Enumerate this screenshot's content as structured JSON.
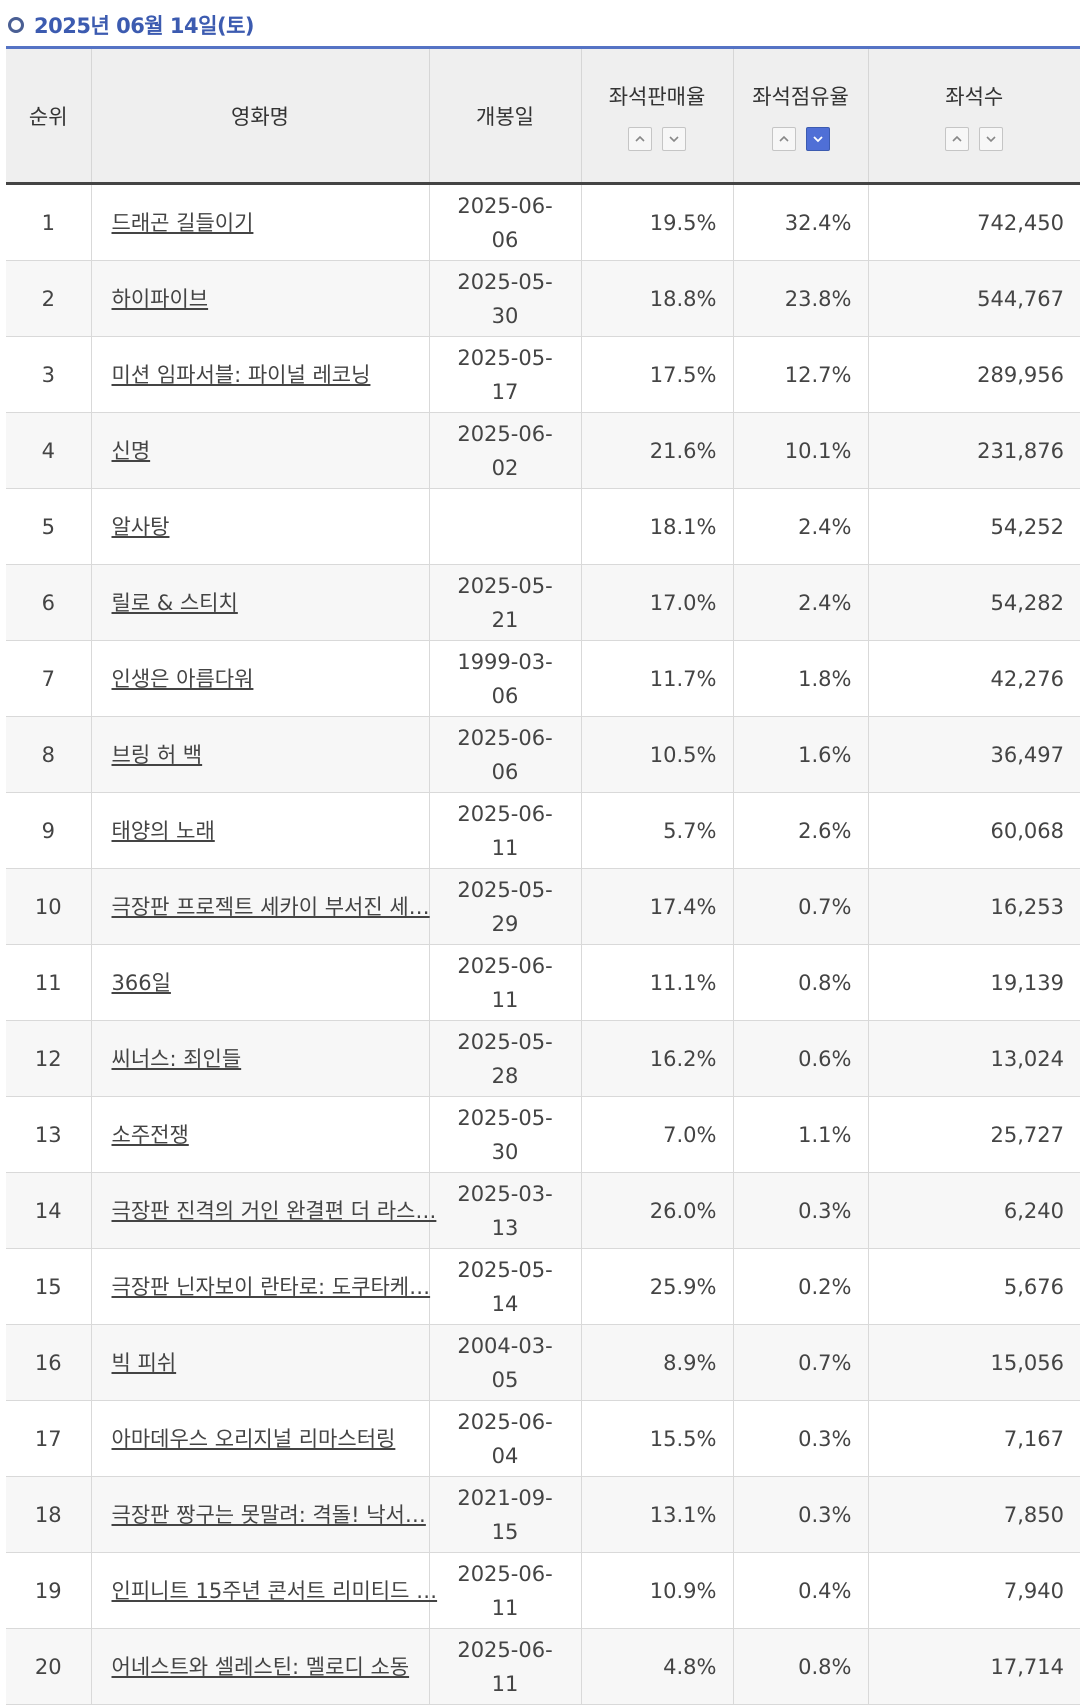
{
  "header_date": "2025년 06월 14일(토)",
  "columns": {
    "rank": "순위",
    "title": "영화명",
    "open_date": "개봉일",
    "sales_rate": "좌석판매율",
    "seat_share": "좌석점유율",
    "seats": "좌석수"
  },
  "sort_state": {
    "active_column": "seat_share",
    "active_direction": "down"
  },
  "rows": [
    {
      "rank": "1",
      "title": "드래곤 길들이기",
      "open_date": "2025-06-06",
      "sales_rate": "19.5%",
      "seat_share": "32.4%",
      "seats": "742,450"
    },
    {
      "rank": "2",
      "title": "하이파이브",
      "open_date": "2025-05-30",
      "sales_rate": "18.8%",
      "seat_share": "23.8%",
      "seats": "544,767"
    },
    {
      "rank": "3",
      "title": "미션 임파서블: 파이널 레코닝",
      "open_date": "2025-05-17",
      "sales_rate": "17.5%",
      "seat_share": "12.7%",
      "seats": "289,956"
    },
    {
      "rank": "4",
      "title": "신명",
      "open_date": "2025-06-02",
      "sales_rate": "21.6%",
      "seat_share": "10.1%",
      "seats": "231,876"
    },
    {
      "rank": "5",
      "title": "알사탕",
      "open_date": "",
      "sales_rate": "18.1%",
      "seat_share": "2.4%",
      "seats": "54,252"
    },
    {
      "rank": "6",
      "title": "릴로 & 스티치",
      "open_date": "2025-05-21",
      "sales_rate": "17.0%",
      "seat_share": "2.4%",
      "seats": "54,282"
    },
    {
      "rank": "7",
      "title": "인생은 아름다워",
      "open_date": "1999-03-06",
      "sales_rate": "11.7%",
      "seat_share": "1.8%",
      "seats": "42,276"
    },
    {
      "rank": "8",
      "title": "브링 허 백",
      "open_date": "2025-06-06",
      "sales_rate": "10.5%",
      "seat_share": "1.6%",
      "seats": "36,497"
    },
    {
      "rank": "9",
      "title": "태양의 노래",
      "open_date": "2025-06-11",
      "sales_rate": "5.7%",
      "seat_share": "2.6%",
      "seats": "60,068"
    },
    {
      "rank": "10",
      "title": "극장판 프로젝트 세카이 부서진 세…",
      "open_date": "2025-05-29",
      "sales_rate": "17.4%",
      "seat_share": "0.7%",
      "seats": "16,253"
    },
    {
      "rank": "11",
      "title": "366일",
      "open_date": "2025-06-11",
      "sales_rate": "11.1%",
      "seat_share": "0.8%",
      "seats": "19,139"
    },
    {
      "rank": "12",
      "title": "씨너스: 죄인들",
      "open_date": "2025-05-28",
      "sales_rate": "16.2%",
      "seat_share": "0.6%",
      "seats": "13,024"
    },
    {
      "rank": "13",
      "title": "소주전쟁",
      "open_date": "2025-05-30",
      "sales_rate": "7.0%",
      "seat_share": "1.1%",
      "seats": "25,727"
    },
    {
      "rank": "14",
      "title": "극장판 진격의 거인 완결편 더 라스…",
      "open_date": "2025-03-13",
      "sales_rate": "26.0%",
      "seat_share": "0.3%",
      "seats": "6,240"
    },
    {
      "rank": "15",
      "title": "극장판 닌자보이 란타로: 도쿠타케…",
      "open_date": "2025-05-14",
      "sales_rate": "25.9%",
      "seat_share": "0.2%",
      "seats": "5,676"
    },
    {
      "rank": "16",
      "title": "빅 피쉬",
      "open_date": "2004-03-05",
      "sales_rate": "8.9%",
      "seat_share": "0.7%",
      "seats": "15,056"
    },
    {
      "rank": "17",
      "title": "아마데우스 오리지널 리마스터링",
      "open_date": "2025-06-04",
      "sales_rate": "15.5%",
      "seat_share": "0.3%",
      "seats": "7,167"
    },
    {
      "rank": "18",
      "title": "극장판 짱구는 못말려: 격돌! 낙서…",
      "open_date": "2021-09-15",
      "sales_rate": "13.1%",
      "seat_share": "0.3%",
      "seats": "7,850"
    },
    {
      "rank": "19",
      "title": "인피니트 15주년 콘서트 리미티드 …",
      "open_date": "2025-06-11",
      "sales_rate": "10.9%",
      "seat_share": "0.4%",
      "seats": "7,940"
    },
    {
      "rank": "20",
      "title": "어네스트와 셀레스틴: 멜로디 소동",
      "open_date": "2025-06-11",
      "sales_rate": "4.8%",
      "seat_share": "0.8%",
      "seats": "17,714"
    }
  ]
}
